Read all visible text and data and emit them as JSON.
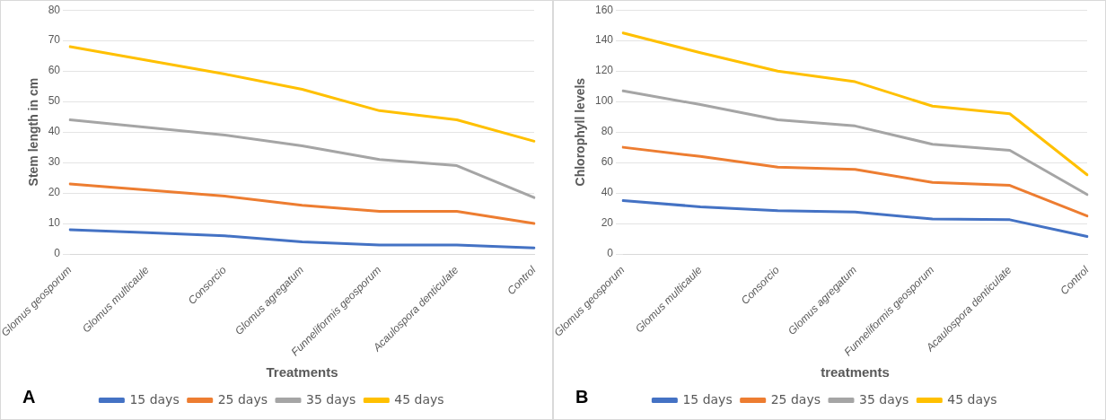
{
  "chart_data": [
    {
      "type": "line",
      "xlabel": "Treatments",
      "ylabel": "Stem length in cm",
      "categories": [
        "Glomus geosporum",
        "Glomus multicaule",
        "Consorcio",
        "Glomus agregatum",
        "Funneliformis geosporum",
        "Acaulospora denticulate",
        "Control"
      ],
      "series": [
        {
          "name": "15 days",
          "color": "#4472c4",
          "values": [
            8,
            7,
            6,
            4,
            3,
            3,
            2
          ]
        },
        {
          "name": "25 days",
          "color": "#ed7d31",
          "values": [
            23,
            21,
            19,
            16,
            14,
            14,
            10
          ]
        },
        {
          "name": "35 days",
          "color": "#a5a5a5",
          "values": [
            44,
            41.5,
            39,
            35.5,
            31,
            29,
            18.5
          ]
        },
        {
          "name": "45 days",
          "color": "#ffc000",
          "values": [
            68,
            63.5,
            59,
            54,
            47,
            44,
            37
          ]
        }
      ],
      "ylim": [
        0,
        80
      ],
      "yticks": [
        0,
        10,
        20,
        30,
        40,
        50,
        60,
        70,
        80
      ],
      "grid": "y",
      "legend": "bottom",
      "marker": "none",
      "line_style": "solid",
      "annotations": [
        "A"
      ]
    },
    {
      "type": "line",
      "xlabel": "treatments",
      "ylabel": "Chlorophyll levels",
      "categories": [
        "Glomus geosporum",
        "Glomus multicaule",
        "Consorcio",
        "Glomus agregatum",
        "Funneliformis geosporum",
        "Acaulospora denticulate",
        "Control"
      ],
      "series": [
        {
          "name": "15 days",
          "color": "#4472c4",
          "values": [
            35,
            31,
            28.5,
            27.5,
            23,
            22.5,
            11.5
          ]
        },
        {
          "name": "25 days",
          "color": "#ed7d31",
          "values": [
            70,
            64,
            57,
            55.5,
            47,
            45,
            25
          ]
        },
        {
          "name": "35 days",
          "color": "#a5a5a5",
          "values": [
            107,
            98,
            88,
            84,
            72,
            68,
            39
          ]
        },
        {
          "name": "45 days",
          "color": "#ffc000",
          "values": [
            145,
            132,
            120,
            113,
            97,
            92,
            52
          ]
        }
      ],
      "ylim": [
        0,
        160
      ],
      "yticks": [
        0,
        20,
        40,
        60,
        80,
        100,
        120,
        140,
        160
      ],
      "grid": "y",
      "legend": "bottom",
      "marker": "none",
      "line_style": "solid",
      "annotations": [
        "B"
      ]
    }
  ]
}
